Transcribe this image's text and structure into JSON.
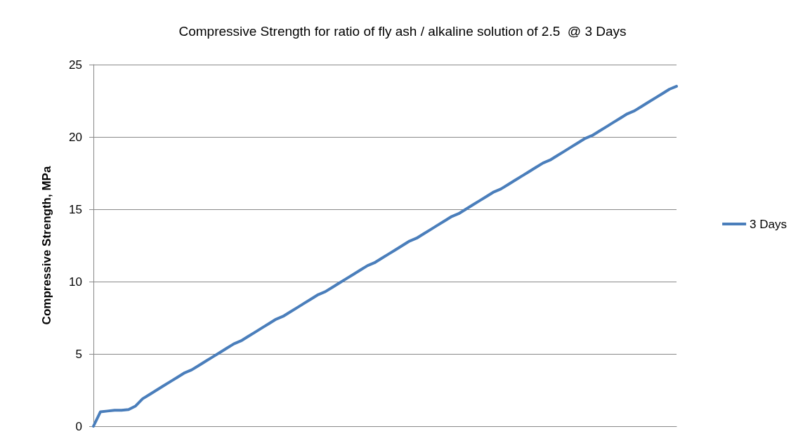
{
  "chart_data": {
    "type": "line",
    "title": "Compressive Strength for ratio of fly ash / alkaline solution of 2.5  @ 3 Days",
    "ylabel": "Compressive Strength, MPa",
    "categories": [
      null,
      null,
      null,
      null,
      null,
      null,
      null,
      null,
      null,
      null,
      null,
      null,
      null,
      null,
      null,
      null,
      null,
      null,
      null,
      null,
      null,
      null,
      null,
      null,
      null,
      null,
      null,
      null,
      null,
      null,
      null,
      null,
      null,
      null,
      null,
      null,
      null,
      null,
      null,
      null,
      null,
      null,
      null,
      null,
      null,
      null,
      null,
      null,
      null,
      null,
      null,
      null,
      null,
      null,
      null,
      null,
      null,
      null,
      null,
      null,
      null,
      null,
      null,
      null,
      null,
      null,
      null,
      null,
      null,
      null,
      null,
      null,
      null,
      null,
      null,
      null,
      null,
      null,
      null,
      null,
      null,
      null,
      null,
      null
    ],
    "series": [
      {
        "name": "3 Days",
        "color": "#4a7ebb",
        "values": [
          0,
          1.0,
          1.05,
          1.1,
          1.1,
          1.15,
          1.4,
          1.9,
          2.2,
          2.5,
          2.8,
          3.1,
          3.4,
          3.7,
          3.9,
          4.2,
          4.5,
          4.8,
          5.1,
          5.4,
          5.7,
          5.9,
          6.2,
          6.5,
          6.8,
          7.1,
          7.4,
          7.6,
          7.9,
          8.2,
          8.5,
          8.8,
          9.1,
          9.3,
          9.6,
          9.9,
          10.2,
          10.5,
          10.8,
          11.1,
          11.3,
          11.6,
          11.9,
          12.2,
          12.5,
          12.8,
          13.0,
          13.3,
          13.6,
          13.9,
          14.2,
          14.5,
          14.7,
          15.0,
          15.3,
          15.6,
          15.9,
          16.2,
          16.4,
          16.7,
          17.0,
          17.3,
          17.6,
          17.9,
          18.2,
          18.4,
          18.7,
          19.0,
          19.3,
          19.6,
          19.9,
          20.1,
          20.4,
          20.7,
          21.0,
          21.3,
          21.6,
          21.8,
          22.1,
          22.4,
          22.7,
          23.0,
          23.3,
          23.5
        ]
      }
    ],
    "ylim": [
      0,
      25
    ],
    "yticks": [
      0,
      5,
      10,
      15,
      20,
      25
    ],
    "grid": "y",
    "legend": "right",
    "marker": "none",
    "line_style": "solid"
  }
}
